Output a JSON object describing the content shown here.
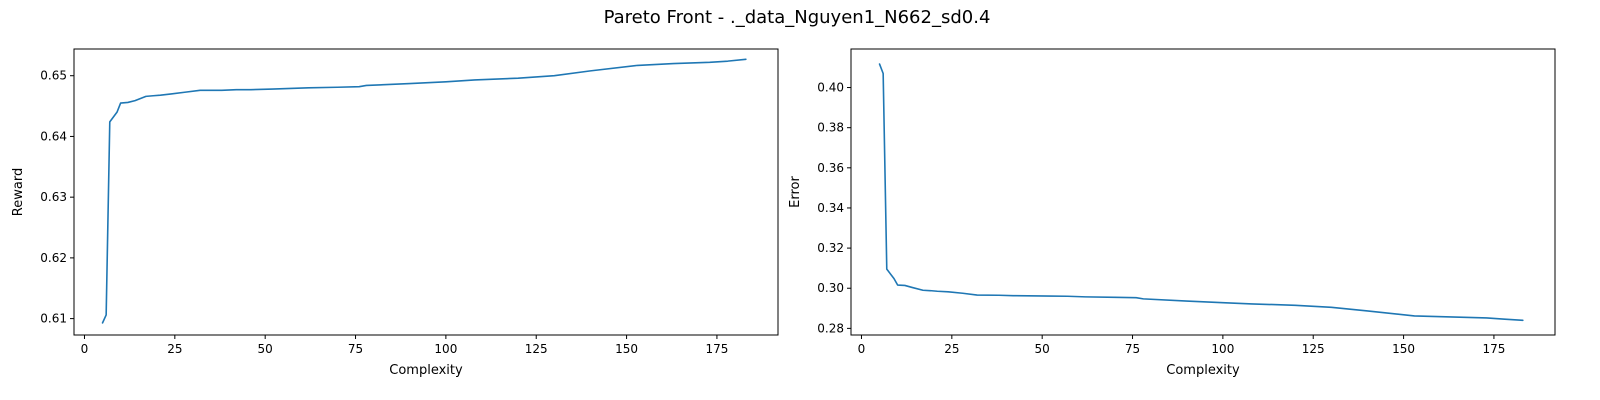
{
  "figure": {
    "title": "Pareto Front - ._data_Nguyen1_N662_sd0.4"
  },
  "colors": {
    "line": "#1f77b4"
  },
  "chart_data": [
    {
      "type": "line",
      "title": "",
      "xlabel": "Complexity",
      "ylabel": "Reward",
      "xlim": [
        -2.9,
        191.9
      ],
      "ylim": [
        0.6073,
        0.6544
      ],
      "grid": false,
      "xticks": [
        0,
        25,
        50,
        75,
        100,
        125,
        150,
        175
      ],
      "xtick_labels": [
        "0",
        "25",
        "50",
        "75",
        "100",
        "125",
        "150",
        "175"
      ],
      "yticks": [
        0.61,
        0.62,
        0.63,
        0.64,
        0.65
      ],
      "ytick_labels": [
        "0.61",
        "0.62",
        "0.63",
        "0.64",
        "0.65"
      ],
      "series": [
        {
          "x": [
            5,
            6,
            7,
            9,
            10,
            12,
            14,
            17,
            19,
            21,
            24,
            28,
            32,
            38,
            42,
            46,
            52,
            57,
            62,
            70,
            76,
            78,
            90,
            100,
            108,
            120,
            130,
            140,
            153,
            163,
            173,
            178,
            183
          ],
          "y": [
            0.6093,
            0.6106,
            0.6424,
            0.644,
            0.6455,
            0.6456,
            0.6459,
            0.6466,
            0.6467,
            0.6468,
            0.647,
            0.6473,
            0.6476,
            0.6476,
            0.6477,
            0.6477,
            0.6478,
            0.6479,
            0.648,
            0.6481,
            0.6482,
            0.6484,
            0.6487,
            0.649,
            0.6493,
            0.6496,
            0.65,
            0.6508,
            0.6517,
            0.652,
            0.6522,
            0.6524,
            0.6527
          ]
        }
      ]
    },
    {
      "type": "line",
      "title": "",
      "xlabel": "Complexity",
      "ylabel": "Error",
      "xlim": [
        -2.9,
        191.9
      ],
      "ylim": [
        0.2767,
        0.4192
      ],
      "grid": false,
      "xticks": [
        0,
        25,
        50,
        75,
        100,
        125,
        150,
        175
      ],
      "xtick_labels": [
        "0",
        "25",
        "50",
        "75",
        "100",
        "125",
        "150",
        "175"
      ],
      "yticks": [
        0.28,
        0.3,
        0.32,
        0.34,
        0.36,
        0.38,
        0.4
      ],
      "ytick_labels": [
        "0.28",
        "0.30",
        "0.32",
        "0.34",
        "0.36",
        "0.38",
        "0.40"
      ],
      "series": [
        {
          "x": [
            5,
            6,
            7,
            9,
            10,
            12,
            14,
            17,
            19,
            21,
            24,
            28,
            32,
            38,
            42,
            46,
            52,
            57,
            62,
            70,
            76,
            78,
            90,
            100,
            108,
            120,
            130,
            140,
            153,
            163,
            173,
            178,
            183
          ],
          "y": [
            0.4117,
            0.407,
            0.3095,
            0.3048,
            0.3016,
            0.3014,
            0.3004,
            0.299,
            0.2988,
            0.2985,
            0.2982,
            0.2975,
            0.2966,
            0.2965,
            0.2963,
            0.2962,
            0.2961,
            0.296,
            0.2957,
            0.2955,
            0.2953,
            0.2947,
            0.2936,
            0.2928,
            0.2922,
            0.2915,
            0.2905,
            0.2887,
            0.2862,
            0.2857,
            0.2852,
            0.2846,
            0.284
          ]
        }
      ]
    }
  ]
}
